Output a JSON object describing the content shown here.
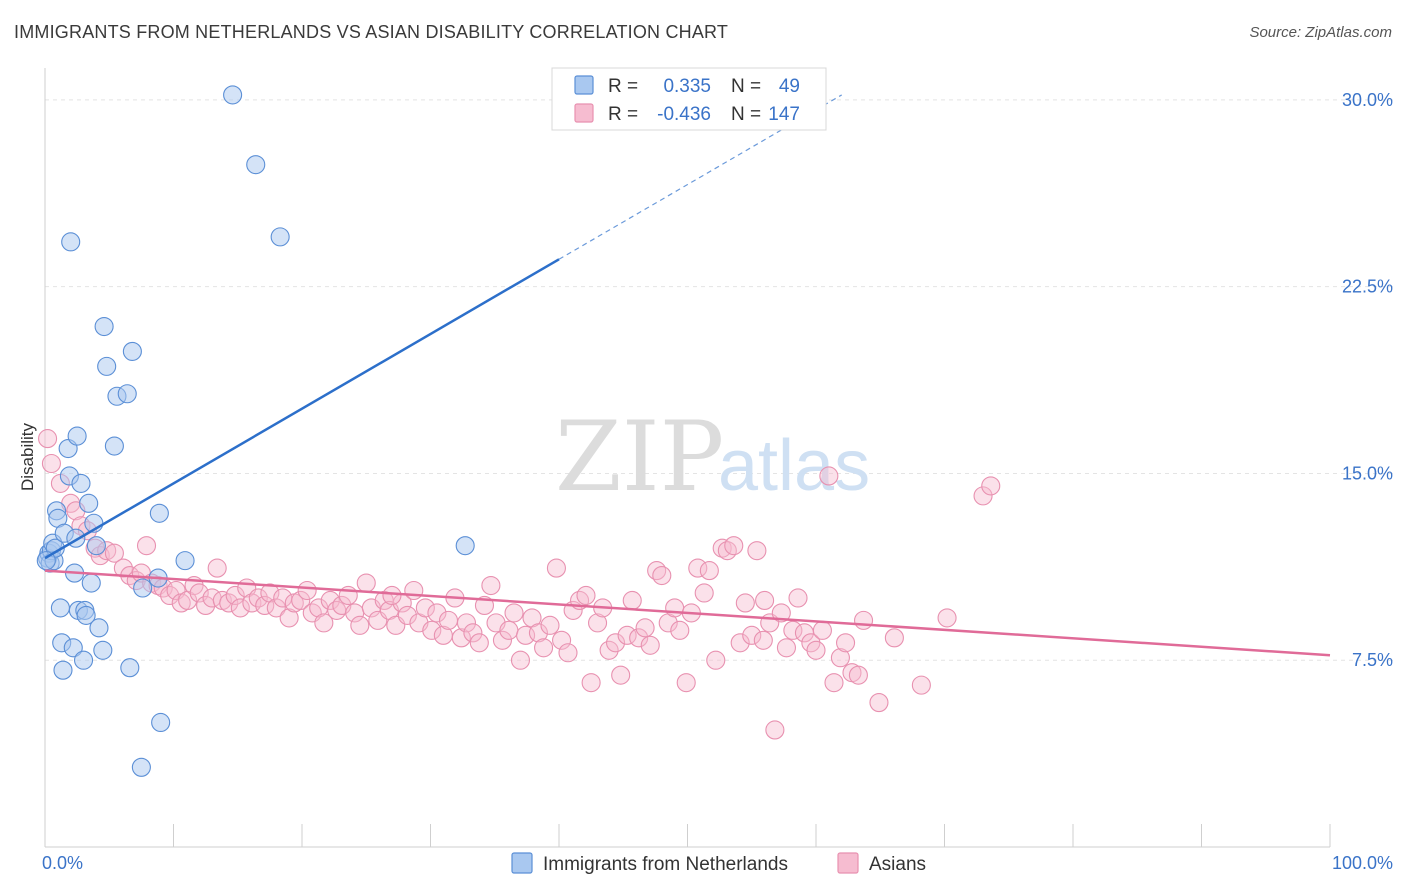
{
  "header": {
    "title": "IMMIGRANTS FROM NETHERLANDS VS ASIAN DISABILITY CORRELATION CHART",
    "source": "Source: ZipAtlas.com"
  },
  "watermark": {
    "zip": "ZIP",
    "atlas": "atlas"
  },
  "colors": {
    "blue_fill": "#a9c8f0",
    "blue_stroke": "#5b8fd6",
    "blue_line": "#2c6fca",
    "pink_fill": "#f6bcd0",
    "pink_stroke": "#e891b0",
    "pink_line": "#e06b98",
    "grid": "#e4e4e4",
    "axis_label": "#3a73c8"
  },
  "legend_top": {
    "rows": [
      {
        "r_label": "R =",
        "r_value": "0.335",
        "n_label": "N =",
        "n_value": "49"
      },
      {
        "r_label": "R =",
        "r_value": "-0.436",
        "n_label": "N =",
        "n_value": "147"
      }
    ]
  },
  "chart_data": {
    "type": "scatter",
    "title": "IMMIGRANTS FROM NETHERLANDS VS ASIAN DISABILITY CORRELATION CHART",
    "xlabel": "",
    "ylabel": "Disability",
    "xlim": [
      0,
      100
    ],
    "ylim": [
      0,
      31
    ],
    "x_tick_labels": [
      "0.0%",
      "100.0%"
    ],
    "y_ticks": [
      7.5,
      15.0,
      22.5,
      30.0
    ],
    "y_tick_labels": [
      "7.5%",
      "15.0%",
      "22.5%",
      "30.0%"
    ],
    "grid": true,
    "legend_position": "top-center",
    "series": [
      {
        "name": "Immigrants from Netherlands",
        "r": 0.335,
        "n": 49,
        "trend": {
          "x0": 0,
          "y0": 11.6,
          "x1": 40,
          "y1": 23.6,
          "dashed_to_x": 62
        },
        "points": [
          [
            0.2,
            11.6
          ],
          [
            0.3,
            11.8
          ],
          [
            0.4,
            11.4
          ],
          [
            0.5,
            11.9
          ],
          [
            0.6,
            12.2
          ],
          [
            0.7,
            11.5
          ],
          [
            0.8,
            12.0
          ],
          [
            0.9,
            13.5
          ],
          [
            1.0,
            13.2
          ],
          [
            1.2,
            9.6
          ],
          [
            1.3,
            8.2
          ],
          [
            1.4,
            7.1
          ],
          [
            1.5,
            12.6
          ],
          [
            1.8,
            16.0
          ],
          [
            1.9,
            14.9
          ],
          [
            2.0,
            24.3
          ],
          [
            2.2,
            8.0
          ],
          [
            2.3,
            11.0
          ],
          [
            2.4,
            12.4
          ],
          [
            2.5,
            16.5
          ],
          [
            2.6,
            9.5
          ],
          [
            2.8,
            14.6
          ],
          [
            3.0,
            7.5
          ],
          [
            3.1,
            9.5
          ],
          [
            3.2,
            9.3
          ],
          [
            3.4,
            13.8
          ],
          [
            3.6,
            10.6
          ],
          [
            3.8,
            13.0
          ],
          [
            4.0,
            12.1
          ],
          [
            4.2,
            8.8
          ],
          [
            4.5,
            7.9
          ],
          [
            4.6,
            20.9
          ],
          [
            4.8,
            19.3
          ],
          [
            5.4,
            16.1
          ],
          [
            5.6,
            18.1
          ],
          [
            6.4,
            18.2
          ],
          [
            6.6,
            7.2
          ],
          [
            6.8,
            19.9
          ],
          [
            7.5,
            3.2
          ],
          [
            7.6,
            10.4
          ],
          [
            8.8,
            10.8
          ],
          [
            8.9,
            13.4
          ],
          [
            9.0,
            5.0
          ],
          [
            10.9,
            11.5
          ],
          [
            14.6,
            30.2
          ],
          [
            16.4,
            27.4
          ],
          [
            18.3,
            24.5
          ],
          [
            32.7,
            12.1
          ],
          [
            0.1,
            11.5
          ]
        ]
      },
      {
        "name": "Asians",
        "r": -0.436,
        "n": 147,
        "trend": {
          "x0": 0,
          "y0": 11.1,
          "x1": 100,
          "y1": 7.7
        },
        "points": [
          [
            0.2,
            16.4
          ],
          [
            0.5,
            15.4
          ],
          [
            1.2,
            14.6
          ],
          [
            2.0,
            13.8
          ],
          [
            2.4,
            13.5
          ],
          [
            2.8,
            12.9
          ],
          [
            3.3,
            12.7
          ],
          [
            3.9,
            12.0
          ],
          [
            4.3,
            11.7
          ],
          [
            4.8,
            11.9
          ],
          [
            5.4,
            11.8
          ],
          [
            6.1,
            11.2
          ],
          [
            6.6,
            10.9
          ],
          [
            7.1,
            10.7
          ],
          [
            7.5,
            11.0
          ],
          [
            7.9,
            12.1
          ],
          [
            8.3,
            10.6
          ],
          [
            8.8,
            10.5
          ],
          [
            9.2,
            10.4
          ],
          [
            9.7,
            10.1
          ],
          [
            10.2,
            10.3
          ],
          [
            10.6,
            9.8
          ],
          [
            11.1,
            9.9
          ],
          [
            11.6,
            10.5
          ],
          [
            12.0,
            10.2
          ],
          [
            12.5,
            9.7
          ],
          [
            13.0,
            10.0
          ],
          [
            13.4,
            11.2
          ],
          [
            13.8,
            9.9
          ],
          [
            14.3,
            9.8
          ],
          [
            14.8,
            10.1
          ],
          [
            15.2,
            9.6
          ],
          [
            15.7,
            10.4
          ],
          [
            16.1,
            9.8
          ],
          [
            16.6,
            10.0
          ],
          [
            17.1,
            9.7
          ],
          [
            17.5,
            10.2
          ],
          [
            18.0,
            9.6
          ],
          [
            18.5,
            10.0
          ],
          [
            19.0,
            9.2
          ],
          [
            19.4,
            9.8
          ],
          [
            19.9,
            9.9
          ],
          [
            20.4,
            10.3
          ],
          [
            20.8,
            9.4
          ],
          [
            21.3,
            9.6
          ],
          [
            21.7,
            9.0
          ],
          [
            22.2,
            9.9
          ],
          [
            22.7,
            9.5
          ],
          [
            23.1,
            9.7
          ],
          [
            23.6,
            10.1
          ],
          [
            24.1,
            9.4
          ],
          [
            24.5,
            8.9
          ],
          [
            25.0,
            10.6
          ],
          [
            25.4,
            9.6
          ],
          [
            25.9,
            9.1
          ],
          [
            26.4,
            9.9
          ],
          [
            26.8,
            9.5
          ],
          [
            27.3,
            8.9
          ],
          [
            27.8,
            9.8
          ],
          [
            28.2,
            9.3
          ],
          [
            28.7,
            10.3
          ],
          [
            29.1,
            9.0
          ],
          [
            29.6,
            9.6
          ],
          [
            30.1,
            8.7
          ],
          [
            30.5,
            9.4
          ],
          [
            31.0,
            8.5
          ],
          [
            31.4,
            9.1
          ],
          [
            31.9,
            10.0
          ],
          [
            32.4,
            8.4
          ],
          [
            32.8,
            9.0
          ],
          [
            33.3,
            8.6
          ],
          [
            33.8,
            8.2
          ],
          [
            34.2,
            9.7
          ],
          [
            34.7,
            10.5
          ],
          [
            35.1,
            9.0
          ],
          [
            35.6,
            8.3
          ],
          [
            36.1,
            8.7
          ],
          [
            36.5,
            9.4
          ],
          [
            37.0,
            7.5
          ],
          [
            37.4,
            8.5
          ],
          [
            37.9,
            9.2
          ],
          [
            38.4,
            8.6
          ],
          [
            38.8,
            8.0
          ],
          [
            39.3,
            8.9
          ],
          [
            39.8,
            11.2
          ],
          [
            40.2,
            8.3
          ],
          [
            40.7,
            7.8
          ],
          [
            41.1,
            9.5
          ],
          [
            41.6,
            9.9
          ],
          [
            42.1,
            10.1
          ],
          [
            42.5,
            6.6
          ],
          [
            43.0,
            9.0
          ],
          [
            43.4,
            9.6
          ],
          [
            43.9,
            7.9
          ],
          [
            44.4,
            8.2
          ],
          [
            44.8,
            6.9
          ],
          [
            45.3,
            8.5
          ],
          [
            45.7,
            9.9
          ],
          [
            46.2,
            8.4
          ],
          [
            46.7,
            8.8
          ],
          [
            47.1,
            8.1
          ],
          [
            47.6,
            11.1
          ],
          [
            48.0,
            10.9
          ],
          [
            48.5,
            9.0
          ],
          [
            49.0,
            9.6
          ],
          [
            49.4,
            8.7
          ],
          [
            49.9,
            6.6
          ],
          [
            50.3,
            9.4
          ],
          [
            50.8,
            11.2
          ],
          [
            51.3,
            10.2
          ],
          [
            51.7,
            11.1
          ],
          [
            52.2,
            7.5
          ],
          [
            52.7,
            12.0
          ],
          [
            53.1,
            11.9
          ],
          [
            53.6,
            12.1
          ],
          [
            54.1,
            8.2
          ],
          [
            54.5,
            9.8
          ],
          [
            55.0,
            8.5
          ],
          [
            55.4,
            11.9
          ],
          [
            55.9,
            8.3
          ],
          [
            56.4,
            9.0
          ],
          [
            56.8,
            4.7
          ],
          [
            57.3,
            9.4
          ],
          [
            57.7,
            8.0
          ],
          [
            58.2,
            8.7
          ],
          [
            58.6,
            10.0
          ],
          [
            59.1,
            8.6
          ],
          [
            59.6,
            8.2
          ],
          [
            60.0,
            7.9
          ],
          [
            60.5,
            8.7
          ],
          [
            61.0,
            14.9
          ],
          [
            61.4,
            6.6
          ],
          [
            61.9,
            7.6
          ],
          [
            62.3,
            8.2
          ],
          [
            62.8,
            7.0
          ],
          [
            63.3,
            6.9
          ],
          [
            63.7,
            9.1
          ],
          [
            64.9,
            5.8
          ],
          [
            66.1,
            8.4
          ],
          [
            68.2,
            6.5
          ],
          [
            70.2,
            9.2
          ],
          [
            73.0,
            14.1
          ],
          [
            73.6,
            14.5
          ],
          [
            56.0,
            9.9
          ],
          [
            27.0,
            10.1
          ]
        ]
      }
    ]
  }
}
